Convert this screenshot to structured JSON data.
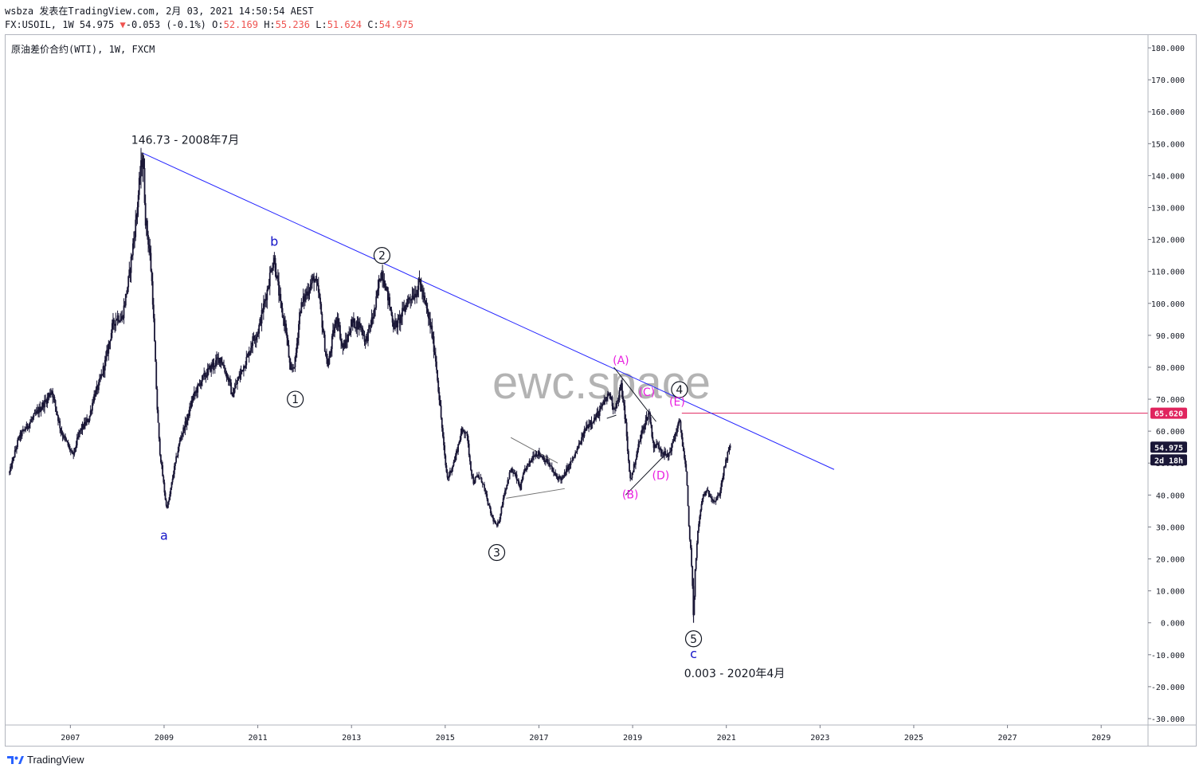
{
  "header": {
    "publish_line": "wsbza 发表在TradingView.com, 2月 03, 2021 14:50:54 AEST",
    "symbol_line_prefix": "FX:USOIL, 1W 54.975",
    "change_arrow": "▼",
    "change": "-0.053 (-0.1%)",
    "o_label": "O:",
    "o": "52.169",
    "h_label": "H:",
    "h": "55.236",
    "l_label": "L:",
    "l": "51.624",
    "c_label": "C:",
    "c": "54.975"
  },
  "chart_title": "原油差价合约(WTI), 1W, FXCM",
  "watermark": "ewc.space",
  "footer_brand": "TradingView",
  "colors": {
    "candles": "#1a1737",
    "trendline": "#2323ff",
    "magenta": "#e91ee0",
    "blue_label": "#1414c8",
    "red_line": "#e0245e",
    "price_tag": "#1a1737"
  },
  "chart_data": {
    "type": "line",
    "series": [
      {
        "values": [
          [
            2005.7,
            47
          ],
          [
            2005.9,
            58
          ],
          [
            2006.1,
            62
          ],
          [
            2006.3,
            66
          ],
          [
            2006.5,
            70
          ],
          [
            2006.6,
            73
          ],
          [
            2006.8,
            60
          ],
          [
            2007.0,
            54
          ],
          [
            2007.05,
            52
          ],
          [
            2007.2,
            60
          ],
          [
            2007.4,
            64
          ],
          [
            2007.5,
            71
          ],
          [
            2007.6,
            74
          ],
          [
            2007.75,
            82
          ],
          [
            2007.9,
            93
          ],
          [
            2008.0,
            96
          ],
          [
            2008.1,
            95
          ],
          [
            2008.25,
            108
          ],
          [
            2008.4,
            126
          ],
          [
            2008.5,
            142
          ],
          [
            2008.55,
            146.73
          ],
          [
            2008.6,
            127
          ],
          [
            2008.7,
            115
          ],
          [
            2008.75,
            104
          ],
          [
            2008.85,
            68
          ],
          [
            2008.9,
            55
          ],
          [
            2009.0,
            42
          ],
          [
            2009.05,
            36
          ],
          [
            2009.1,
            38
          ],
          [
            2009.2,
            47
          ],
          [
            2009.35,
            58
          ],
          [
            2009.5,
            64
          ],
          [
            2009.6,
            70
          ],
          [
            2009.8,
            76
          ],
          [
            2009.9,
            78
          ],
          [
            2010.0,
            80
          ],
          [
            2010.2,
            83
          ],
          [
            2010.4,
            75
          ],
          [
            2010.45,
            71
          ],
          [
            2010.6,
            77
          ],
          [
            2010.8,
            84
          ],
          [
            2010.9,
            89
          ],
          [
            2011.0,
            91
          ],
          [
            2011.2,
            104
          ],
          [
            2011.3,
            112
          ],
          [
            2011.35,
            114
          ],
          [
            2011.5,
            98
          ],
          [
            2011.6,
            92
          ],
          [
            2011.7,
            78
          ],
          [
            2011.8,
            82
          ],
          [
            2011.9,
            98
          ],
          [
            2012.0,
            102
          ],
          [
            2012.2,
            108
          ],
          [
            2012.3,
            103
          ],
          [
            2012.45,
            84
          ],
          [
            2012.5,
            80
          ],
          [
            2012.6,
            90
          ],
          [
            2012.7,
            96
          ],
          [
            2012.8,
            86
          ],
          [
            2012.9,
            88
          ],
          [
            2013.0,
            94
          ],
          [
            2013.2,
            93
          ],
          [
            2013.3,
            88
          ],
          [
            2013.5,
            98
          ],
          [
            2013.6,
            108
          ],
          [
            2013.65,
            110
          ],
          [
            2013.75,
            104
          ],
          [
            2013.9,
            93
          ],
          [
            2014.0,
            94
          ],
          [
            2014.2,
            101
          ],
          [
            2014.4,
            104
          ],
          [
            2014.45,
            107
          ],
          [
            2014.6,
            98
          ],
          [
            2014.7,
            92
          ],
          [
            2014.8,
            82
          ],
          [
            2014.9,
            66
          ],
          [
            2015.0,
            50
          ],
          [
            2015.05,
            45
          ],
          [
            2015.2,
            51
          ],
          [
            2015.35,
            60
          ],
          [
            2015.45,
            60
          ],
          [
            2015.55,
            48
          ],
          [
            2015.6,
            44
          ],
          [
            2015.7,
            46
          ],
          [
            2015.8,
            44
          ],
          [
            2015.9,
            38
          ],
          [
            2016.0,
            33
          ],
          [
            2016.1,
            30
          ],
          [
            2016.15,
            32
          ],
          [
            2016.25,
            40
          ],
          [
            2016.4,
            48
          ],
          [
            2016.5,
            46
          ],
          [
            2016.6,
            42
          ],
          [
            2016.7,
            48
          ],
          [
            2016.8,
            50
          ],
          [
            2016.9,
            53
          ],
          [
            2017.0,
            53
          ],
          [
            2017.2,
            50
          ],
          [
            2017.35,
            46
          ],
          [
            2017.5,
            45
          ],
          [
            2017.6,
            48
          ],
          [
            2017.75,
            52
          ],
          [
            2017.9,
            57
          ],
          [
            2018.0,
            61
          ],
          [
            2018.1,
            63
          ],
          [
            2018.2,
            64
          ],
          [
            2018.4,
            69
          ],
          [
            2018.5,
            72
          ],
          [
            2018.6,
            67
          ],
          [
            2018.7,
            70
          ],
          [
            2018.75,
            75
          ],
          [
            2018.85,
            63
          ],
          [
            2018.9,
            52
          ],
          [
            2018.95,
            45
          ],
          [
            2019.0,
            47
          ],
          [
            2019.1,
            54
          ],
          [
            2019.2,
            60
          ],
          [
            2019.3,
            64
          ],
          [
            2019.35,
            66
          ],
          [
            2019.45,
            55
          ],
          [
            2019.55,
            56
          ],
          [
            2019.6,
            54
          ],
          [
            2019.75,
            52
          ],
          [
            2019.85,
            56
          ],
          [
            2019.95,
            61
          ],
          [
            2020.0,
            63
          ],
          [
            2020.05,
            58
          ],
          [
            2020.1,
            52
          ],
          [
            2020.15,
            46
          ],
          [
            2020.2,
            30
          ],
          [
            2020.25,
            21
          ],
          [
            2020.28,
            10
          ],
          [
            2020.3,
            0.003
          ],
          [
            2020.33,
            16
          ],
          [
            2020.4,
            30
          ],
          [
            2020.5,
            40
          ],
          [
            2020.6,
            41
          ],
          [
            2020.75,
            38
          ],
          [
            2020.85,
            40
          ],
          [
            2020.9,
            44
          ],
          [
            2020.95,
            48
          ],
          [
            2021.0,
            51
          ],
          [
            2021.05,
            54
          ],
          [
            2021.09,
            54.975
          ]
        ]
      }
    ],
    "x_ticks": [
      "2007",
      "2009",
      "2011",
      "2013",
      "2015",
      "2017",
      "2019",
      "2021",
      "2023",
      "2025",
      "2027",
      "2029"
    ],
    "x_tick_values": [
      2007,
      2009,
      2011,
      2013,
      2015,
      2017,
      2019,
      2021,
      2023,
      2025,
      2027,
      2029
    ],
    "xlim": [
      2005.6,
      2030.0
    ],
    "y_ticks": [
      "180.000",
      "170.000",
      "160.000",
      "150.000",
      "140.000",
      "130.000",
      "120.000",
      "110.000",
      "100.000",
      "90.000",
      "80.000",
      "70.000",
      "60.000",
      "50.000",
      "40.000",
      "30.000",
      "20.000",
      "10.000",
      "0.000",
      "-10.000",
      "-20.000",
      "-30.000"
    ],
    "y_tick_values": [
      180,
      170,
      160,
      150,
      140,
      130,
      120,
      110,
      100,
      90,
      80,
      70,
      60,
      50,
      40,
      30,
      20,
      10,
      0,
      -10,
      -20,
      -30
    ],
    "ylim": [
      -32,
      184
    ],
    "horizontal_line": {
      "value": 65.62,
      "label": "65.620"
    },
    "last_price": {
      "label": "54.975",
      "value": 54.975,
      "countdown": "2d 18h"
    },
    "trendline": {
      "x1": 2008.55,
      "y1": 147,
      "x2": 2023.3,
      "y2": 48
    },
    "annotations": [
      {
        "text": "146.73 - 2008年7月",
        "x": 2008.3,
        "y": 150,
        "kind": "note"
      },
      {
        "text": "0.003 - 2020年4月",
        "x": 2020.1,
        "y": -17,
        "kind": "note"
      },
      {
        "text": "a",
        "x": 2009.0,
        "y": 26,
        "kind": "blue"
      },
      {
        "text": "b",
        "x": 2011.35,
        "y": 118,
        "kind": "blue"
      },
      {
        "text": "c",
        "x": 2020.3,
        "y": -11,
        "kind": "blue"
      },
      {
        "text": "1",
        "x": 2011.8,
        "y": 70,
        "kind": "circle"
      },
      {
        "text": "2",
        "x": 2013.65,
        "y": 115,
        "kind": "circle"
      },
      {
        "text": "3",
        "x": 2016.1,
        "y": 22,
        "kind": "circle"
      },
      {
        "text": "4",
        "x": 2020.0,
        "y": 73,
        "kind": "circle"
      },
      {
        "text": "5",
        "x": 2020.3,
        "y": -5,
        "kind": "circle"
      },
      {
        "text": "(A)",
        "x": 2018.75,
        "y": 81,
        "kind": "magenta"
      },
      {
        "text": "(B)",
        "x": 2018.95,
        "y": 39,
        "kind": "magenta"
      },
      {
        "text": "(C)",
        "x": 2019.3,
        "y": 71,
        "kind": "magenta"
      },
      {
        "text": "(D)",
        "x": 2019.6,
        "y": 45,
        "kind": "magenta"
      },
      {
        "text": "(E)",
        "x": 2019.95,
        "y": 68,
        "kind": "magenta"
      }
    ],
    "support_lines": [
      {
        "x1": 2016.4,
        "y1": 58,
        "x2": 2017.4,
        "y2": 50,
        "kind": "gray"
      },
      {
        "x1": 2016.3,
        "y1": 39,
        "x2": 2017.55,
        "y2": 42,
        "kind": "gray"
      },
      {
        "x1": 2018.6,
        "y1": 80,
        "x2": 2019.5,
        "y2": 63,
        "kind": "black"
      },
      {
        "x1": 2018.85,
        "y1": 40,
        "x2": 2019.65,
        "y2": 52,
        "kind": "black"
      },
      {
        "x1": 2018.45,
        "y1": 64,
        "x2": 2018.65,
        "y2": 65,
        "kind": "black"
      }
    ]
  }
}
